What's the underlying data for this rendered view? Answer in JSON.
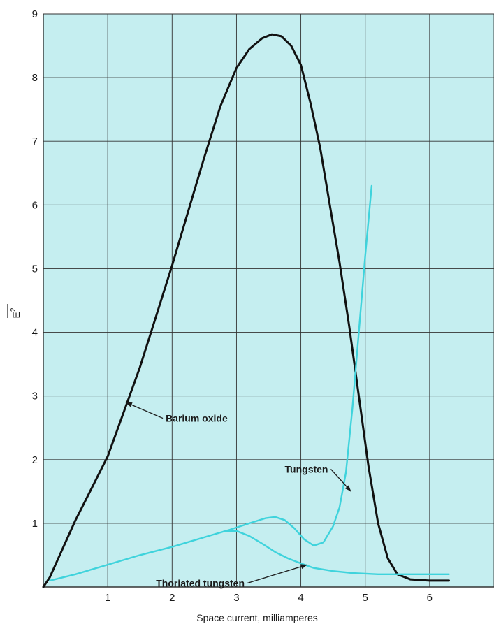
{
  "chart_data": {
    "type": "line",
    "xlabel": "Space current, milliamperes",
    "ylabel": "E",
    "ylabel_sup": "2",
    "xlim": [
      0,
      7
    ],
    "ylim": [
      0,
      9
    ],
    "x_ticks": [
      "1",
      "2",
      "3",
      "4",
      "5",
      "6"
    ],
    "y_ticks": [
      "1",
      "2",
      "3",
      "4",
      "5",
      "6",
      "7",
      "8",
      "9"
    ],
    "grid": true,
    "colors": {
      "plot_bg": "#c5eef0",
      "grid": "#333333",
      "barium": "#111111",
      "cyan": "#3fd3dc"
    },
    "series": [
      {
        "name": "Barium oxide",
        "color": "#111111",
        "x": [
          0,
          0.1,
          0.3,
          0.5,
          0.75,
          1.0,
          1.25,
          1.5,
          1.75,
          2.0,
          2.25,
          2.5,
          2.75,
          3.0,
          3.2,
          3.4,
          3.55,
          3.7,
          3.85,
          4.0,
          4.15,
          4.3,
          4.45,
          4.6,
          4.75,
          4.9,
          5.05,
          5.2,
          5.35,
          5.5,
          5.7,
          6.0,
          6.3
        ],
        "y": [
          0,
          0.15,
          0.6,
          1.05,
          1.55,
          2.05,
          2.75,
          3.45,
          4.25,
          5.05,
          5.9,
          6.75,
          7.55,
          8.15,
          8.45,
          8.62,
          8.68,
          8.65,
          8.5,
          8.2,
          7.6,
          6.9,
          6.0,
          5.1,
          4.1,
          3.0,
          1.9,
          1.0,
          0.45,
          0.2,
          0.12,
          0.1,
          0.1
        ]
      },
      {
        "name": "Tungsten",
        "color": "#3fd3dc",
        "x": [
          0.1,
          0.5,
          1.0,
          1.5,
          2.0,
          2.5,
          2.9,
          3.2,
          3.45,
          3.6,
          3.75,
          3.9,
          4.05,
          4.2,
          4.35,
          4.5,
          4.6,
          4.7,
          4.8,
          4.9,
          5.0,
          5.1
        ],
        "y": [
          0.1,
          0.2,
          0.35,
          0.5,
          0.63,
          0.78,
          0.9,
          1.0,
          1.08,
          1.1,
          1.05,
          0.92,
          0.75,
          0.65,
          0.7,
          0.95,
          1.25,
          1.8,
          2.8,
          4.0,
          5.2,
          6.3
        ]
      },
      {
        "name": "Thoriated tungsten",
        "color": "#3fd3dc",
        "x": [
          2.8,
          3.0,
          3.2,
          3.4,
          3.6,
          3.8,
          4.0,
          4.2,
          4.5,
          4.8,
          5.2,
          5.6,
          6.0,
          6.3
        ],
        "y": [
          0.87,
          0.88,
          0.8,
          0.68,
          0.55,
          0.45,
          0.37,
          0.3,
          0.25,
          0.22,
          0.2,
          0.2,
          0.2,
          0.2
        ]
      }
    ],
    "annotations": [
      {
        "text": "Barium oxide",
        "target_x": 1.28,
        "target_y": 2.9,
        "label_x": 1.9,
        "label_y": 2.65
      },
      {
        "text": "Tungsten",
        "target_x": 4.78,
        "target_y": 1.5,
        "label_x": 3.75,
        "label_y": 1.85
      },
      {
        "text": "Thoriated tungsten",
        "target_x": 4.1,
        "target_y": 0.35,
        "label_x": 1.75,
        "label_y": 0.06
      }
    ]
  }
}
